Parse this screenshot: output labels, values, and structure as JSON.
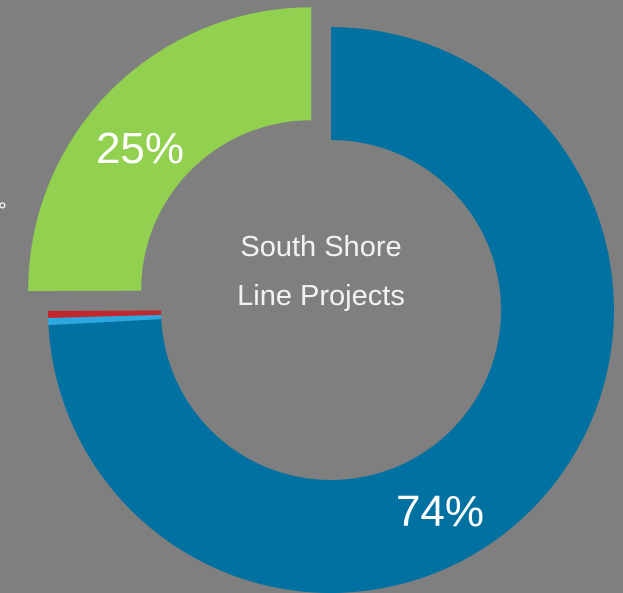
{
  "chart_data": {
    "type": "pie",
    "variant": "donut",
    "center_label": [
      "South Shore",
      "Line Projects"
    ],
    "slices": [
      {
        "label": "74%",
        "value": 74,
        "color": "#0071a1"
      },
      {
        "label": "",
        "value": 0.4,
        "color": "#2ba8e0"
      },
      {
        "label": "",
        "value": 0.4,
        "color": "#c0282e"
      },
      {
        "label": "25%",
        "value": 25,
        "color": "#92d050"
      }
    ],
    "exploded_slice_index": 3,
    "cutoff_edge_glyph": "°"
  }
}
